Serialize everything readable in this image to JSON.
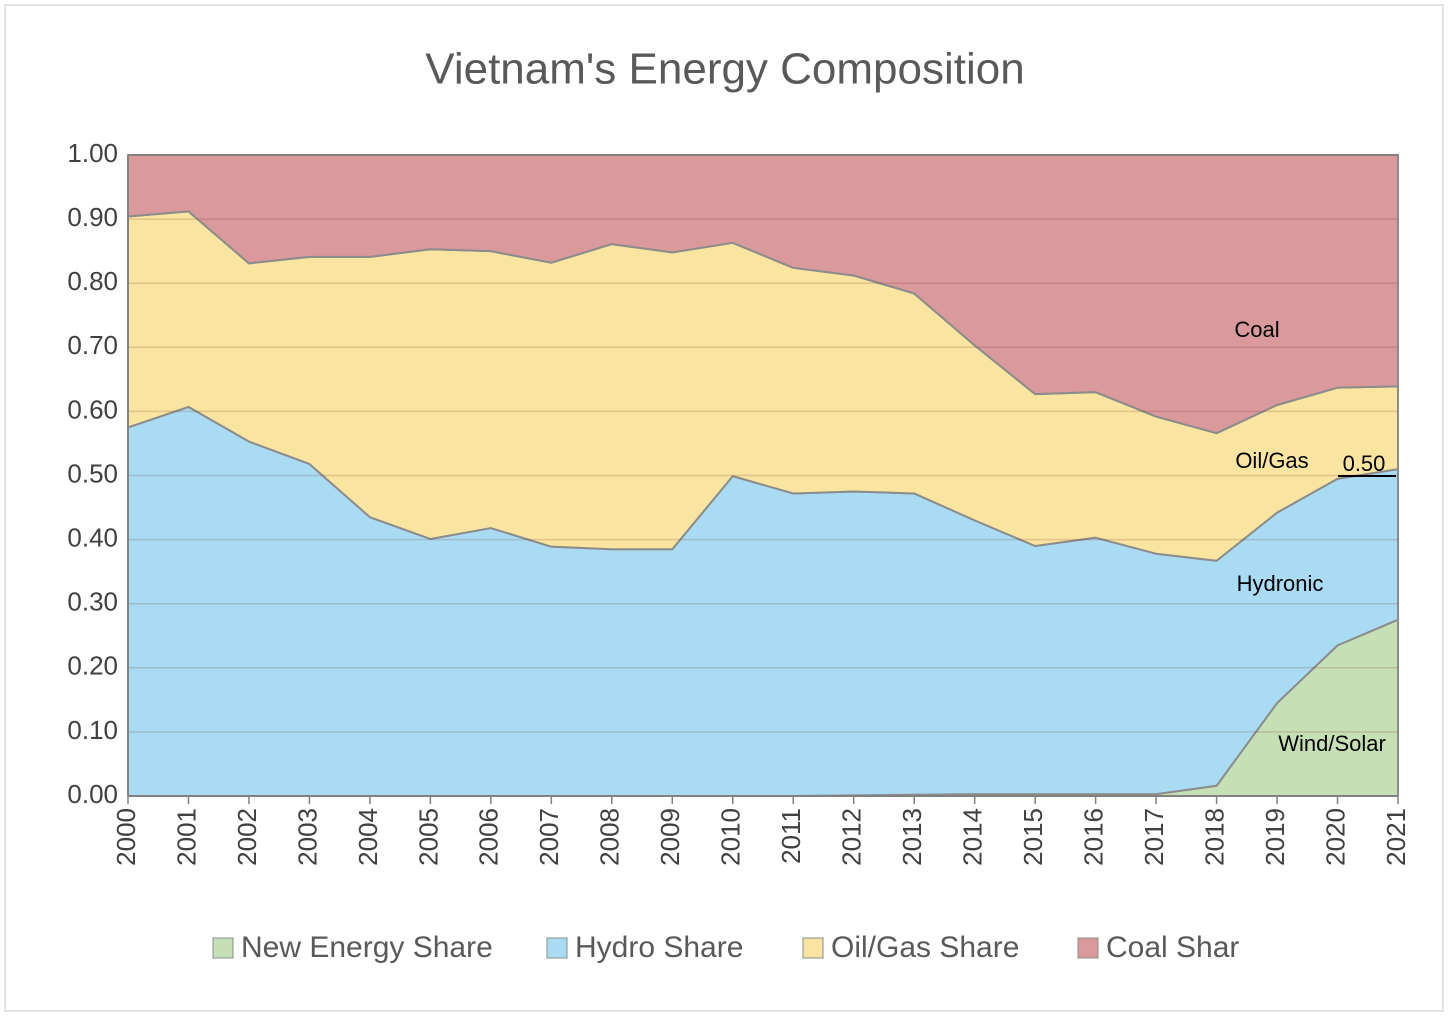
{
  "chart_data": {
    "type": "stacked_area",
    "title": "Vietnam's Energy Composition",
    "categories": [
      "2000",
      "2001",
      "2002",
      "2003",
      "2004",
      "2005",
      "2006",
      "2007",
      "2008",
      "2009",
      "2010",
      "2011",
      "2012",
      "2013",
      "2014",
      "2015",
      "2016",
      "2017",
      "2018",
      "2019",
      "2020",
      "2021"
    ],
    "series": [
      {
        "name": "New Energy Share",
        "color": "#c5e0b4",
        "values": [
          0,
          0,
          0,
          0,
          0,
          0,
          0,
          0,
          0,
          0,
          0,
          0,
          0.001,
          0.002,
          0.003,
          0.003,
          0.003,
          0.003,
          0.016,
          0.145,
          0.235,
          0.275
        ]
      },
      {
        "name": "Hydro Share",
        "color": "#a9dcf3",
        "values": [
          0.575,
          0.607,
          0.553,
          0.518,
          0.435,
          0.401,
          0.418,
          0.389,
          0.385,
          0.385,
          0.499,
          0.472,
          0.474,
          0.47,
          0.427,
          0.387,
          0.4,
          0.375,
          0.351,
          0.297,
          0.26,
          0.235
        ]
      },
      {
        "name": "Oil/Gas Share",
        "color": "#f9e4a0",
        "values": [
          0.329,
          0.305,
          0.278,
          0.323,
          0.406,
          0.452,
          0.432,
          0.443,
          0.476,
          0.463,
          0.364,
          0.352,
          0.337,
          0.312,
          0.273,
          0.237,
          0.227,
          0.214,
          0.199,
          0.168,
          0.142,
          0.129
        ]
      },
      {
        "name": "Coal Shar",
        "color": "#da999b",
        "values": [
          0.096,
          0.088,
          0.169,
          0.159,
          0.159,
          0.147,
          0.15,
          0.168,
          0.139,
          0.152,
          0.137,
          0.176,
          0.188,
          0.216,
          0.297,
          0.373,
          0.37,
          0.408,
          0.434,
          0.39,
          0.363,
          0.361
        ]
      }
    ],
    "ylim": [
      0,
      1
    ],
    "yticks": [
      {
        "value": 0,
        "label": "0.00"
      },
      {
        "value": 0.1,
        "label": "0.10"
      },
      {
        "value": 0.2,
        "label": "0.20"
      },
      {
        "value": 0.3,
        "label": "0.30"
      },
      {
        "value": 0.4,
        "label": "0.40"
      },
      {
        "value": 0.5,
        "label": "0.50"
      },
      {
        "value": 0.6,
        "label": "0.60"
      },
      {
        "value": 0.7,
        "label": "0.70"
      },
      {
        "value": 0.8,
        "label": "0.80"
      },
      {
        "value": 0.9,
        "label": "0.90"
      },
      {
        "value": 1,
        "label": "1.00"
      }
    ],
    "grid": true,
    "legend": "bottom",
    "annotations": [
      "Coal",
      "Oil/Gas",
      "0.50",
      "Hydronic",
      "Wind/Solar"
    ]
  }
}
